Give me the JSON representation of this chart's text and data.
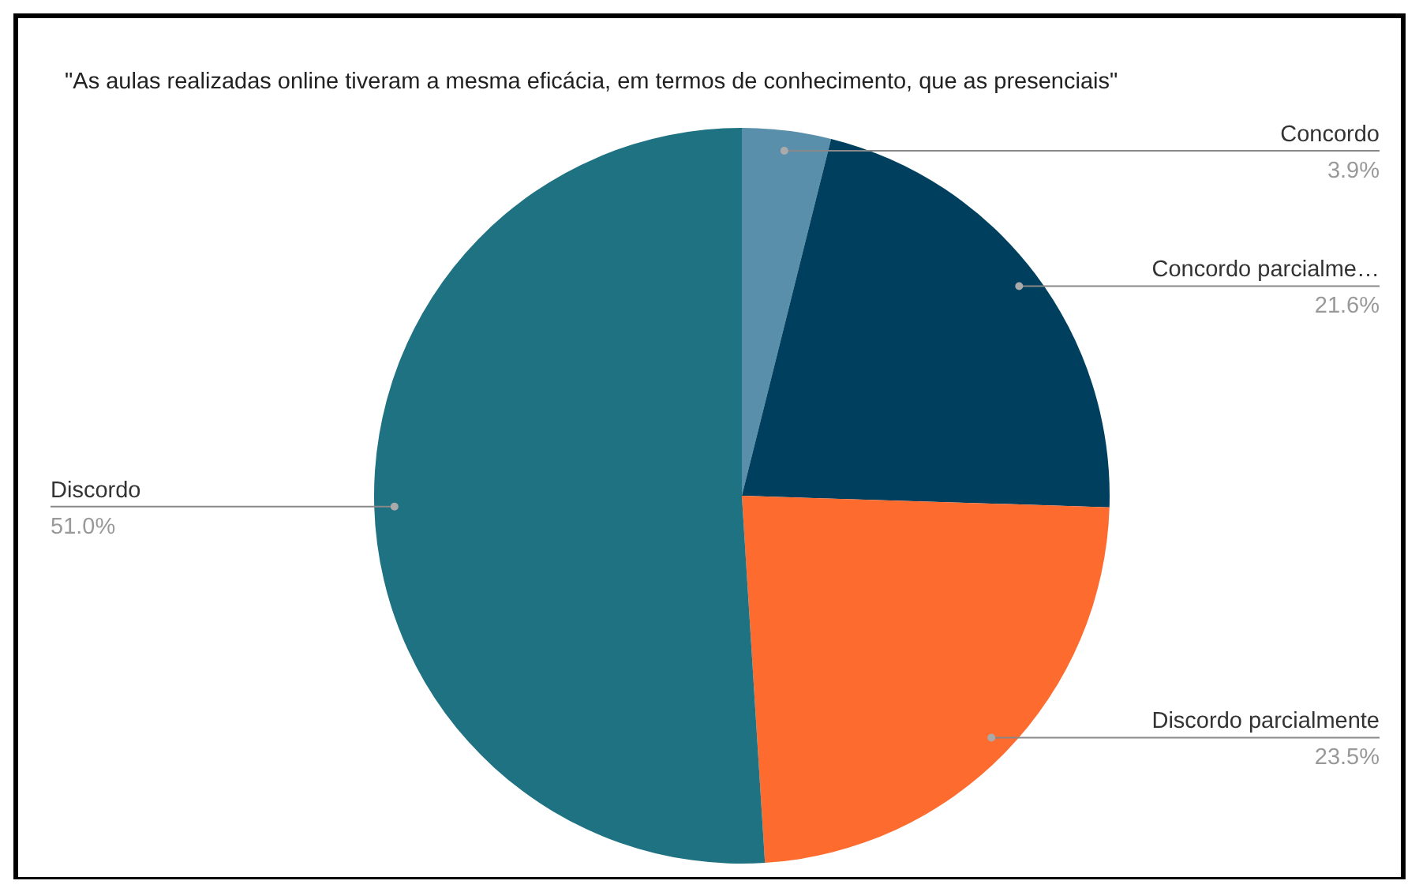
{
  "chart_data": {
    "type": "pie",
    "title": "\"As aulas realizadas online tiveram a mesma eficácia, em termos de conhecimento, que as presenciais\"",
    "categories": [
      "Concordo",
      "Concordo parcialme…",
      "Discordo parcialmente",
      "Discordo"
    ],
    "values": [
      3.9,
      21.6,
      23.5,
      51.0
    ],
    "colors": [
      "#5a8fab",
      "#00405e",
      "#fd6b2f",
      "#1e7282"
    ],
    "value_labels": [
      "3.9%",
      "21.6%",
      "23.5%",
      "51.0%"
    ],
    "legend": false
  }
}
